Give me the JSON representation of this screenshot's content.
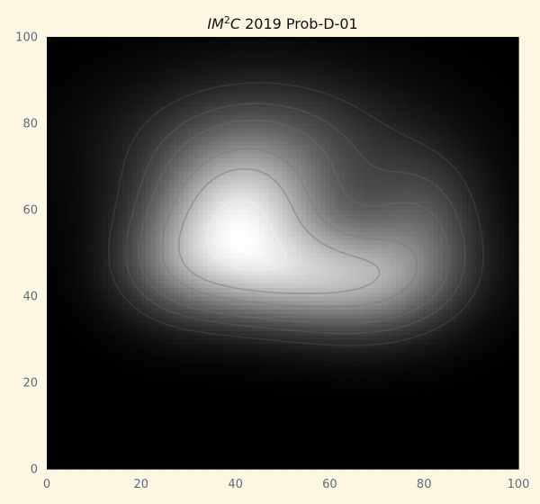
{
  "chart_data": {
    "type": "heatmap",
    "title_parts": {
      "italic_base": "IM",
      "superscript": "2",
      "italic_suffix": "C",
      "rest": " 2019 Prob-D-01"
    },
    "xlim": [
      0,
      100
    ],
    "ylim": [
      0,
      100
    ],
    "x_ticks": [
      0,
      20,
      40,
      60,
      80,
      100
    ],
    "y_ticks": [
      0,
      20,
      40,
      60,
      80,
      100
    ],
    "x_tick_labels": [
      "0",
      "20",
      "40",
      "60",
      "80",
      "100"
    ],
    "y_tick_labels": [
      "0",
      "20",
      "40",
      "60",
      "80",
      "100"
    ],
    "grid": false,
    "colormap": "gray",
    "grid_resolution": 100,
    "components": [
      {
        "cx": 41,
        "cy": 58,
        "sx": 12,
        "sy": 11,
        "amp": 1.0
      },
      {
        "cx": 68,
        "cy": 44,
        "sx": 13,
        "sy": 9,
        "amp": 0.8
      },
      {
        "cx": 46,
        "cy": 74,
        "sx": 20,
        "sy": 12,
        "amp": 0.45
      },
      {
        "cx": 28,
        "cy": 47,
        "sx": 10,
        "sy": 9,
        "amp": 0.45
      },
      {
        "cx": 80,
        "cy": 58,
        "sx": 9,
        "sy": 11,
        "amp": 0.35
      },
      {
        "cx": 48,
        "cy": 44,
        "sx": 12,
        "sy": 8,
        "amp": 0.5
      }
    ],
    "contour_levels": [
      0.15,
      0.25,
      0.35,
      0.45,
      0.55,
      0.7,
      0.9
    ],
    "background_color": "#fdf6e3",
    "title_color": "#111111",
    "tick_color": "#5f6b78"
  }
}
